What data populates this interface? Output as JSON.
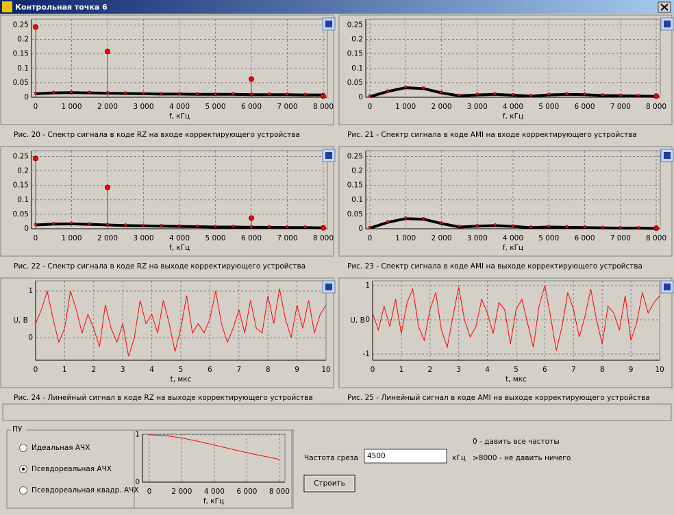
{
  "window": {
    "title": "Контрольная точка 6"
  },
  "plots": [
    {
      "type": "spectrum",
      "caption": "Рис. 20 - Спектр сигнала в коде RZ на входе корректирующего устройства",
      "xlabel": "f, кГц",
      "xlim": [
        -114,
        8114
      ],
      "ylim": [
        0,
        0.27
      ],
      "xticks": [
        0,
        {
          "value": 1000,
          "label": "1 000"
        },
        {
          "value": 2000,
          "label": "2 000"
        },
        {
          "value": 3000,
          "label": "3 000"
        },
        {
          "value": 4000,
          "label": "4 000"
        },
        {
          "value": 5000,
          "label": "5 000"
        },
        {
          "value": 6000,
          "label": "6 000"
        },
        {
          "value": 7000,
          "label": "7 000"
        },
        {
          "value": 8000,
          "label": "8 000"
        }
      ],
      "yticks": [
        0,
        0.05,
        0.1,
        0.15,
        0.2,
        0.25
      ],
      "floor": {
        "color": "#000000",
        "x": [
          0,
          500,
          1000,
          1500,
          2000,
          2500,
          3000,
          3500,
          4000,
          4500,
          5000,
          5500,
          6000,
          6500,
          7000,
          7500,
          8000
        ],
        "values": [
          0.012,
          0.015,
          0.016,
          0.015,
          0.014,
          0.013,
          0.012,
          0.011,
          0.011,
          0.01,
          0.01,
          0.01,
          0.009,
          0.009,
          0.009,
          0.008,
          0.008
        ]
      },
      "stems": {
        "color": "#ff0000",
        "x": [
          0,
          2000,
          6000,
          8000
        ],
        "values": [
          0.243,
          0.158,
          0.063,
          0.004
        ]
      }
    },
    {
      "type": "spectrum",
      "caption": "Рис. 21 - Спектр сигнала в коде AMI на входе корректирующего устройства",
      "xlabel": "f, кГц",
      "xlim": [
        -114,
        8114
      ],
      "ylim": [
        0,
        0.27
      ],
      "xticks": [
        0,
        {
          "value": 1000,
          "label": "1 000"
        },
        {
          "value": 2000,
          "label": "2 000"
        },
        {
          "value": 3000,
          "label": "3 000"
        },
        {
          "value": 4000,
          "label": "4 000"
        },
        {
          "value": 5000,
          "label": "5 000"
        },
        {
          "value": 6000,
          "label": "6 000"
        },
        {
          "value": 7000,
          "label": "7 000"
        },
        {
          "value": 8000,
          "label": "8 000"
        }
      ],
      "yticks": [
        0,
        0.05,
        0.1,
        0.15,
        0.2,
        0.25
      ],
      "floor": {
        "color": "#000000",
        "x": [
          0,
          500,
          1000,
          1500,
          2000,
          2500,
          3000,
          3500,
          4000,
          4500,
          5000,
          5500,
          6000,
          6500,
          7000,
          7500,
          8000
        ],
        "values": [
          0.002,
          0.02,
          0.033,
          0.03,
          0.015,
          0.005,
          0.008,
          0.01,
          0.007,
          0.004,
          0.008,
          0.01,
          0.009,
          0.006,
          0.005,
          0.004,
          0.003
        ]
      },
      "stems": {
        "color": "#ff0000",
        "x": [
          8000
        ],
        "values": [
          0.004
        ]
      }
    },
    {
      "type": "spectrum",
      "caption": "Рис. 22 - Спектр сигнала в коде RZ на выходе корректирующего устройства",
      "xlabel": "f, кГц",
      "xlim": [
        -114,
        8114
      ],
      "ylim": [
        0,
        0.27
      ],
      "xticks": [
        0,
        {
          "value": 1000,
          "label": "1 000"
        },
        {
          "value": 2000,
          "label": "2 000"
        },
        {
          "value": 3000,
          "label": "3 000"
        },
        {
          "value": 4000,
          "label": "4 000"
        },
        {
          "value": 5000,
          "label": "5 000"
        },
        {
          "value": 6000,
          "label": "6 000"
        },
        {
          "value": 7000,
          "label": "7 000"
        },
        {
          "value": 8000,
          "label": "8 000"
        }
      ],
      "yticks": [
        0,
        0.05,
        0.1,
        0.15,
        0.2,
        0.25
      ],
      "floor": {
        "color": "#000000",
        "x": [
          0,
          500,
          1000,
          1500,
          2000,
          2500,
          3000,
          3500,
          4000,
          4500,
          5000,
          5500,
          6000,
          6500,
          7000,
          7500,
          8000
        ],
        "values": [
          0.013,
          0.016,
          0.017,
          0.015,
          0.013,
          0.011,
          0.01,
          0.009,
          0.008,
          0.007,
          0.006,
          0.006,
          0.005,
          0.005,
          0.004,
          0.004,
          0.003
        ]
      },
      "stems": {
        "color": "#ff0000",
        "x": [
          0,
          2000,
          6000,
          8000
        ],
        "values": [
          0.243,
          0.143,
          0.037,
          0.003
        ]
      }
    },
    {
      "type": "spectrum",
      "caption": "Рис. 23 - Спектр сигнала в коде AMI на выходе корректирующего устройства",
      "xlabel": "f, кГц",
      "xlim": [
        -114,
        8114
      ],
      "ylim": [
        0,
        0.27
      ],
      "xticks": [
        0,
        {
          "value": 1000,
          "label": "1 000"
        },
        {
          "value": 2000,
          "label": "2 000"
        },
        {
          "value": 3000,
          "label": "3 000"
        },
        {
          "value": 4000,
          "label": "4 000"
        },
        {
          "value": 5000,
          "label": "5 000"
        },
        {
          "value": 6000,
          "label": "6 000"
        },
        {
          "value": 7000,
          "label": "7 000"
        },
        {
          "value": 8000,
          "label": "8 000"
        }
      ],
      "yticks": [
        0,
        0.05,
        0.1,
        0.15,
        0.2,
        0.25
      ],
      "floor": {
        "color": "#000000",
        "x": [
          0,
          500,
          1000,
          1500,
          2000,
          2500,
          3000,
          3500,
          4000,
          4500,
          5000,
          5500,
          6000,
          6500,
          7000,
          7500,
          8000
        ],
        "values": [
          0.002,
          0.022,
          0.035,
          0.033,
          0.018,
          0.006,
          0.009,
          0.011,
          0.008,
          0.004,
          0.006,
          0.005,
          0.004,
          0.003,
          0.002,
          0.002,
          0.001
        ]
      },
      "stems": {
        "color": "#ff0000",
        "x": [
          8000
        ],
        "values": [
          0.002
        ]
      }
    },
    {
      "type": "signal",
      "caption": "Рис. 24 - Линейный сигнал в коде RZ на выходе корректирующего устройства",
      "xlabel": "t, мкс",
      "ylabel": "U, В",
      "xlim": [
        0,
        10
      ],
      "ylim": [
        -0.485,
        1.22
      ],
      "xticks": [
        0,
        1,
        2,
        3,
        4,
        5,
        6,
        7,
        8,
        9,
        10
      ],
      "yticks": [
        0,
        1
      ],
      "color": "#ff0000",
      "x": [
        0,
        0.2,
        0.4,
        0.6,
        0.8,
        1,
        1.2,
        1.4,
        1.6,
        1.8,
        2,
        2.2,
        2.4,
        2.6,
        2.8,
        3,
        3.2,
        3.4,
        3.6,
        3.8,
        4,
        4.2,
        4.4,
        4.6,
        4.8,
        5,
        5.2,
        5.4,
        5.6,
        5.8,
        6,
        6.2,
        6.4,
        6.6,
        6.8,
        7,
        7.2,
        7.4,
        7.6,
        7.8,
        8,
        8.2,
        8.4,
        8.6,
        8.8,
        9,
        9.2,
        9.4,
        9.6,
        9.8,
        10
      ],
      "values": [
        0.3,
        0.6,
        1.0,
        0.4,
        -0.1,
        0.2,
        1.0,
        0.6,
        0.1,
        0.5,
        0.2,
        -0.2,
        0.7,
        0.2,
        -0.1,
        0.3,
        -0.4,
        0.0,
        0.8,
        0.3,
        0.5,
        0.1,
        0.8,
        0.3,
        -0.3,
        0.2,
        0.9,
        0.1,
        0.3,
        0.1,
        0.4,
        1.0,
        0.3,
        -0.1,
        0.2,
        0.6,
        0.1,
        0.8,
        0.2,
        0.1,
        0.9,
        0.3,
        1.05,
        0.4,
        0.0,
        0.7,
        0.2,
        0.8,
        0.1,
        0.5,
        0.7
      ]
    },
    {
      "type": "signal",
      "caption": "Рис. 25 - Линейный сигнал в коде AMI на выходе корректирующего устройства",
      "xlabel": "t, мкс",
      "ylabel": "U, В",
      "xlim": [
        0,
        10
      ],
      "ylim": [
        -1.18,
        1.14
      ],
      "xticks": [
        0,
        1,
        2,
        3,
        4,
        5,
        6,
        7,
        8,
        9,
        10
      ],
      "yticks": [
        -1,
        0,
        1
      ],
      "color": "#ff0000",
      "x": [
        0,
        0.2,
        0.4,
        0.6,
        0.8,
        1,
        1.2,
        1.4,
        1.6,
        1.8,
        2,
        2.2,
        2.4,
        2.6,
        2.8,
        3,
        3.2,
        3.4,
        3.6,
        3.8,
        4,
        4.2,
        4.4,
        4.6,
        4.8,
        5,
        5.2,
        5.4,
        5.6,
        5.8,
        6,
        6.2,
        6.4,
        6.6,
        6.8,
        7,
        7.2,
        7.4,
        7.6,
        7.8,
        8,
        8.2,
        8.4,
        8.6,
        8.8,
        9,
        9.2,
        9.4,
        9.6,
        9.8,
        10
      ],
      "values": [
        0.2,
        -0.3,
        0.4,
        -0.2,
        0.6,
        -0.4,
        0.5,
        0.9,
        -0.2,
        -0.6,
        0.3,
        0.8,
        -0.3,
        -0.8,
        0.1,
        0.95,
        0.0,
        -0.5,
        -0.2,
        0.6,
        0.2,
        -0.4,
        0.5,
        0.3,
        -0.7,
        0.3,
        0.6,
        -0.1,
        -0.8,
        0.4,
        1.0,
        0.1,
        -0.9,
        -0.2,
        0.8,
        0.3,
        -0.5,
        0.1,
        0.9,
        0.0,
        -0.7,
        0.4,
        0.2,
        -0.3,
        0.7,
        -0.6,
        -0.1,
        0.8,
        0.2,
        0.5,
        0.7
      ]
    }
  ],
  "control_panel": {
    "legend": "ПУ",
    "options": [
      "Идеальная АЧХ",
      "Псевдореальная АЧХ",
      "Псевдореальная квадр. АЧХ"
    ],
    "selected": 1,
    "response": {
      "type": "signal",
      "xlabel": "f, кГц",
      "xlim": [
        -420,
        8340
      ],
      "ylim": [
        0,
        1.01
      ],
      "xticks": [
        0,
        {
          "value": 2000,
          "label": "2 000"
        },
        {
          "value": 4000,
          "label": "4 000"
        },
        {
          "value": 6000,
          "label": "6 000"
        },
        {
          "value": 8000,
          "label": "8 000"
        }
      ],
      "yticks": [
        0,
        1
      ],
      "color": "#ff0000",
      "x": [
        0,
        1000,
        2000,
        3000,
        4000,
        5000,
        6000,
        7000,
        8000
      ],
      "values": [
        1,
        0.98,
        0.93,
        0.86,
        0.78,
        0.7,
        0.62,
        0.55,
        0.48
      ]
    },
    "cutoff_label": "Частота среза",
    "cutoff_value": "4500",
    "cutoff_unit": "кГц",
    "hint_zero": "0 - давить все частоты",
    "hint_max": ">8000 - не давить ничего",
    "button": "Строить"
  }
}
